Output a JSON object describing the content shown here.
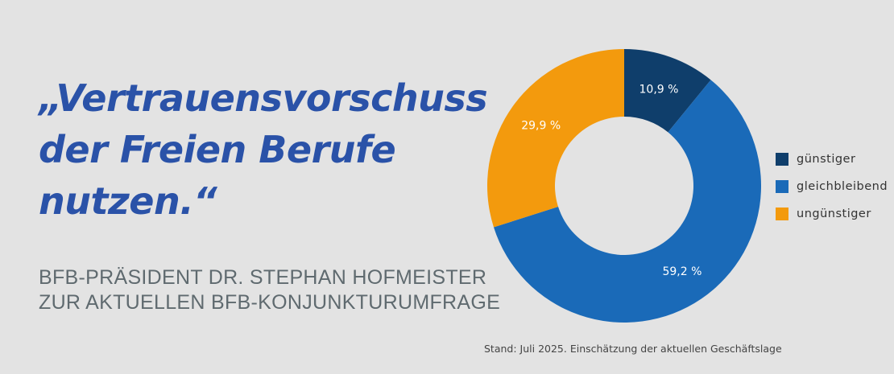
{
  "quote": {
    "lines": [
      "„Vertrauensvorschuss",
      "der Freien Berufe",
      "nutzen.“"
    ]
  },
  "subtitle": {
    "lines": [
      "BFB-PRÄSIDENT DR. STEPHAN HOFMEISTER",
      "ZUR AKTUELLEN BFB-KONJUNKTURUMFRAGE"
    ]
  },
  "footnote": "Stand: Juli 2025. Einschätzung der aktuellen Geschäftslage",
  "chart_data": {
    "type": "pie",
    "variant": "donut",
    "categories": [
      "günstiger",
      "gleichbleibend",
      "ungünstiger"
    ],
    "values": [
      10.9,
      59.2,
      29.9
    ],
    "labels": [
      "10,9 %",
      "59,2 %",
      "29,9 %"
    ],
    "colors": [
      "#0f3e6b",
      "#1a6ab8",
      "#f39a0d"
    ],
    "legend_position": "right"
  }
}
